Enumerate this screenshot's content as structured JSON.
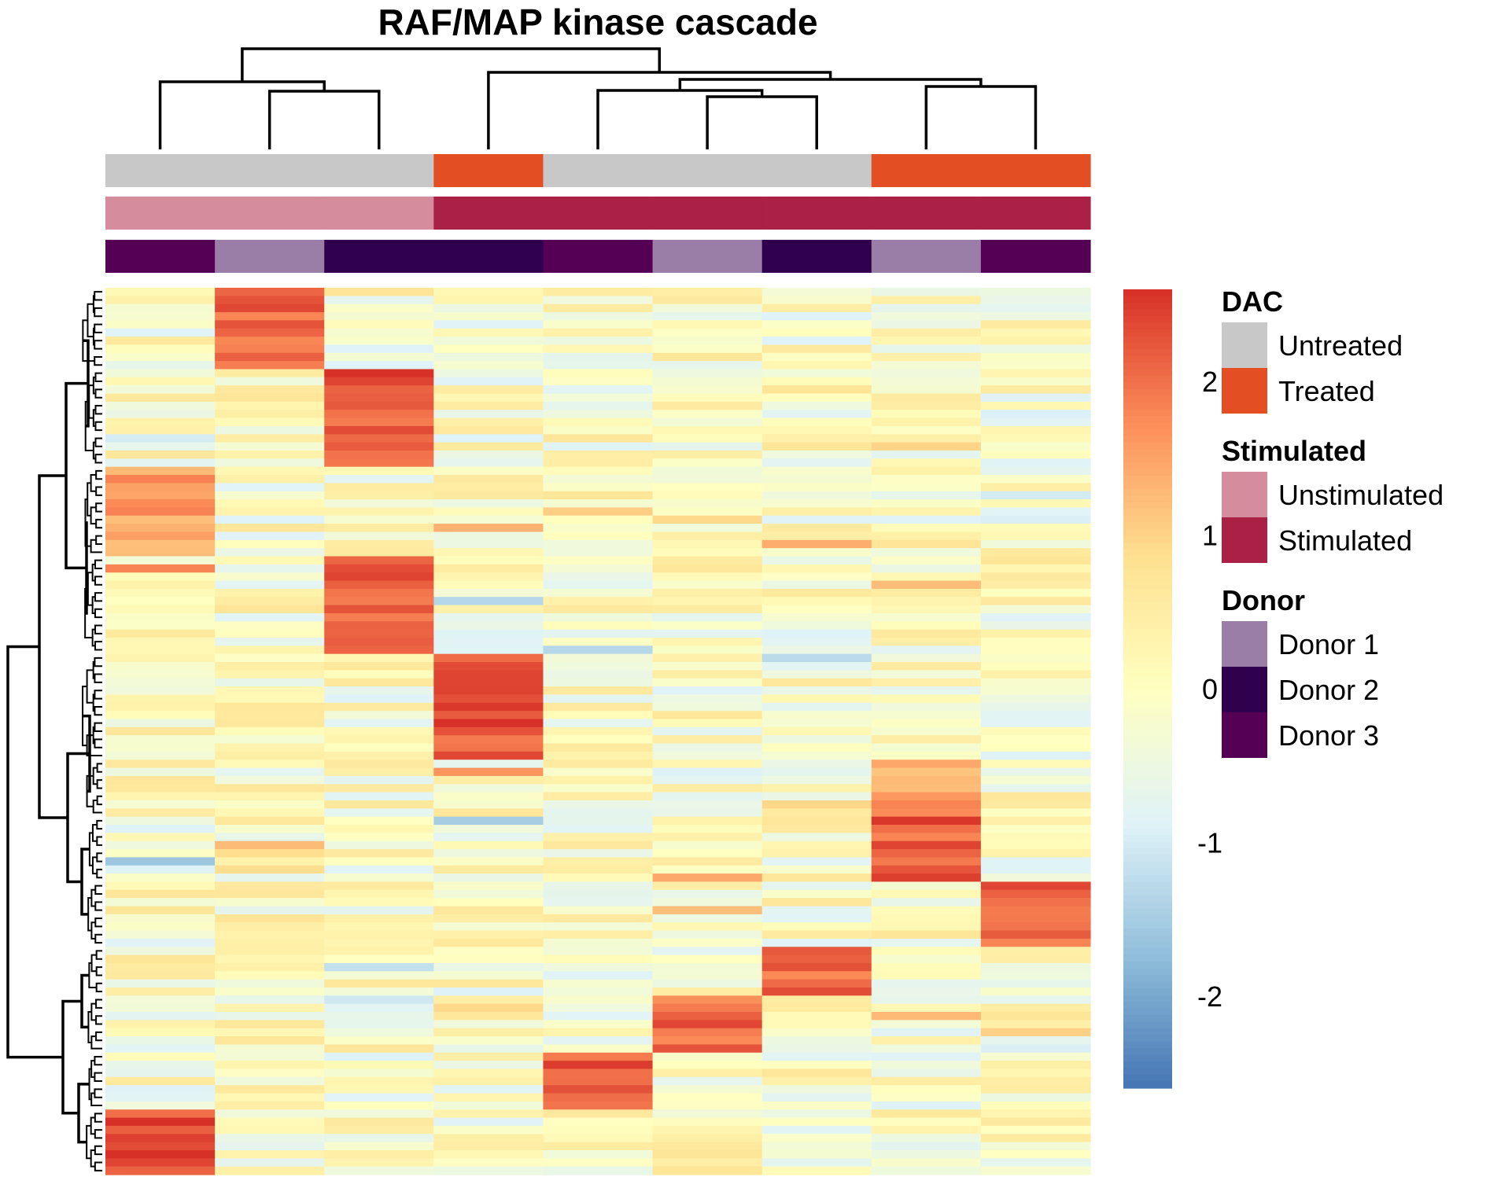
{
  "chart_data": {
    "type": "heatmap",
    "title": "RAF/MAP kinase cascade",
    "columns": [
      {
        "dac": "Untreated",
        "stimulated": "Unstimulated",
        "donor": "Donor 3"
      },
      {
        "dac": "Untreated",
        "stimulated": "Unstimulated",
        "donor": "Donor 1"
      },
      {
        "dac": "Untreated",
        "stimulated": "Unstimulated",
        "donor": "Donor 2"
      },
      {
        "dac": "Treated",
        "stimulated": "Stimulated",
        "donor": "Donor 2"
      },
      {
        "dac": "Untreated",
        "stimulated": "Stimulated",
        "donor": "Donor 3"
      },
      {
        "dac": "Untreated",
        "stimulated": "Stimulated",
        "donor": "Donor 1"
      },
      {
        "dac": "Untreated",
        "stimulated": "Stimulated",
        "donor": "Donor 2"
      },
      {
        "dac": "Treated",
        "stimulated": "Stimulated",
        "donor": "Donor 1"
      },
      {
        "dac": "Treated",
        "stimulated": "Stimulated",
        "donor": "Donor 3"
      }
    ],
    "column_dendrogram": [
      [
        1,
        2,
        1
      ],
      [
        0,
        9,
        2
      ],
      [
        6,
        7,
        1
      ],
      [
        5,
        10,
        2
      ],
      [
        4,
        11,
        3
      ],
      [
        8,
        9,
        0
      ]
    ],
    "row_blocks": [
      {
        "rows": 10,
        "high_column": 1,
        "value": 2.0
      },
      {
        "rows": 12,
        "high_column": 2,
        "value": 2.2
      },
      {
        "rows": 11,
        "high_column": 0,
        "value": 1.5
      },
      {
        "rows": 12,
        "high_column": 2,
        "value": 2.1
      },
      {
        "rows": 13,
        "high_column": 3,
        "value": 2.3
      },
      {
        "rows": 7,
        "high_column": 7,
        "value": 1.5
      },
      {
        "rows": 8,
        "high_column": 7,
        "value": 2.2
      },
      {
        "rows": 8,
        "high_column": 8,
        "value": 2.0
      },
      {
        "rows": 6,
        "high_column": 6,
        "value": 2.1
      },
      {
        "rows": 7,
        "high_column": 5,
        "value": 2.0
      },
      {
        "rows": 7,
        "high_column": 4,
        "value": 2.3
      },
      {
        "rows": 8,
        "high_column": 0,
        "value": 2.4
      }
    ],
    "color_scale": {
      "min": -2.6,
      "max": 2.6,
      "ticks": [
        2,
        1,
        0,
        -1,
        -2
      ],
      "colors": [
        "#4575b4",
        "#91bfdb",
        "#e0f3f8",
        "#ffffbf",
        "#fee090",
        "#fc8d59",
        "#d73027"
      ]
    }
  },
  "legend": [
    {
      "title": "DAC",
      "items": [
        {
          "label": "Untreated",
          "color": "#c8c8c8"
        },
        {
          "label": "Treated",
          "color": "#e34f22"
        }
      ]
    },
    {
      "title": "Stimulated",
      "items": [
        {
          "label": "Unstimulated",
          "color": "#d58c9c"
        },
        {
          "label": "Stimulated",
          "color": "#ab2145"
        }
      ]
    },
    {
      "title": "Donor",
      "items": [
        {
          "label": "Donor 1",
          "color": "#9a7ea8"
        },
        {
          "label": "Donor 2",
          "color": "#30004f"
        },
        {
          "label": "Donor 3",
          "color": "#550055"
        }
      ]
    }
  ]
}
